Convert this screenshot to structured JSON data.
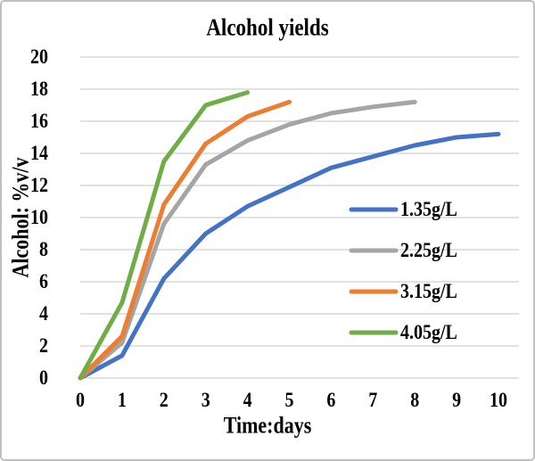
{
  "title": "Alcohol yields",
  "x_axis": {
    "title": "Time:days",
    "ticks": [
      0,
      1,
      2,
      3,
      4,
      5,
      6,
      7,
      8,
      9,
      10
    ]
  },
  "y_axis": {
    "title": "Alcohol: %v/v",
    "ticks": [
      0,
      2,
      4,
      6,
      8,
      10,
      12,
      14,
      16,
      18,
      20
    ]
  },
  "colors": {
    "gridline": "#d9d9d9",
    "frame_border": "#bfbfbf",
    "text": "#000000",
    "series_blue": "#4472C4",
    "series_gray": "#A5A5A5",
    "series_orange": "#ED7D31",
    "series_green": "#70AD47"
  },
  "legend": {
    "position": "center-right",
    "entries": [
      "1.35g/L",
      "2.25g/L",
      "3.15g/L",
      "4.05g/L"
    ]
  },
  "chart_data": {
    "type": "line",
    "title": "Alcohol yields",
    "xlabel": "Time:days",
    "ylabel": "Alcohol: %v/v",
    "xlim": [
      0,
      10
    ],
    "ylim": [
      0,
      20
    ],
    "grid": "horizontal-only",
    "legend_position": "center-right",
    "series": [
      {
        "name": "1.35g/L",
        "color": "#4472C4",
        "x": [
          0,
          1,
          2,
          3,
          4,
          5,
          6,
          7,
          8,
          9,
          10
        ],
        "values": [
          0,
          1.4,
          6.2,
          9.0,
          10.7,
          11.9,
          13.1,
          13.8,
          14.5,
          15.0,
          15.2
        ]
      },
      {
        "name": "2.25g/L",
        "color": "#A5A5A5",
        "x": [
          0,
          1,
          2,
          3,
          4,
          5,
          6,
          7,
          8
        ],
        "values": [
          0,
          2.2,
          9.6,
          13.3,
          14.8,
          15.8,
          16.5,
          16.9,
          17.2
        ]
      },
      {
        "name": "3.15g/L",
        "color": "#ED7D31",
        "x": [
          0,
          1,
          2,
          3,
          4,
          5
        ],
        "values": [
          0,
          2.6,
          10.8,
          14.6,
          16.3,
          17.2
        ]
      },
      {
        "name": "4.05g/L",
        "color": "#70AD47",
        "x": [
          0,
          1,
          2,
          3,
          4
        ],
        "values": [
          0,
          4.7,
          13.5,
          17.0,
          17.8
        ]
      }
    ]
  }
}
